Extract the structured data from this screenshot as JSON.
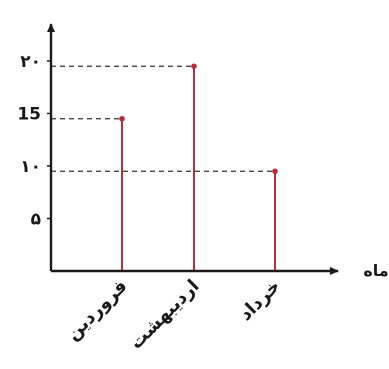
{
  "chart_data": {
    "type": "bar",
    "categories": [
      "فروردین",
      "اردیبهشت",
      "خرداد"
    ],
    "values": [
      14.5,
      19.5,
      9.5
    ],
    "y_ticks": [
      {
        "value": 5,
        "label": "۵"
      },
      {
        "value": 10,
        "label": "۱۰"
      },
      {
        "value": 15,
        "label": "15"
      },
      {
        "value": 20,
        "label": "۲۰"
      }
    ],
    "xlabel": "ماه",
    "ylabel": "",
    "ylim": [
      0,
      22
    ],
    "colors": {
      "stem": "#b5303f",
      "axis": "#1a1a1a",
      "guide": "#333333"
    }
  }
}
